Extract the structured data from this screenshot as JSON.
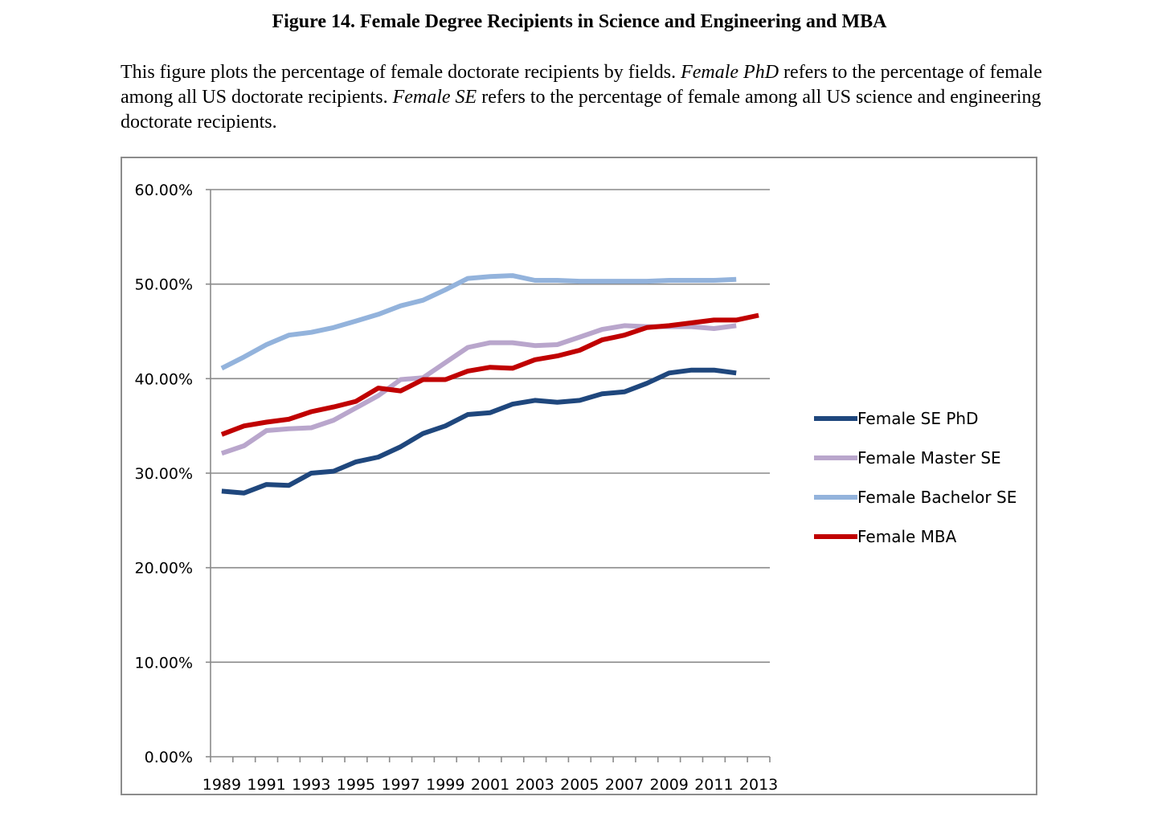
{
  "figure": {
    "title": "Figure 14. Female Degree Recipients in Science and Engineering and MBA",
    "caption": {
      "p1": "This figure plots the percentage of female doctorate recipients by fields. ",
      "em1": "Female PhD",
      "p2": " refers to the percentage of female among all US doctorate recipients. ",
      "em2": "Female SE",
      "p3": " refers to the percentage of female among all US science and engineering doctorate recipients."
    }
  },
  "chart_data": {
    "type": "line",
    "title": "",
    "xlabel": "",
    "ylabel": "",
    "x": [
      1989,
      1990,
      1991,
      1992,
      1993,
      1994,
      1995,
      1996,
      1997,
      1998,
      1999,
      2000,
      2001,
      2002,
      2003,
      2004,
      2005,
      2006,
      2007,
      2008,
      2009,
      2010,
      2011,
      2012,
      2013
    ],
    "x_tick_labels": [
      "1989",
      "1991",
      "1993",
      "1995",
      "1997",
      "1999",
      "2001",
      "2003",
      "2005",
      "2007",
      "2009",
      "2011",
      "2013"
    ],
    "y_tick_labels": [
      "0.00%",
      "10.00%",
      "20.00%",
      "30.00%",
      "40.00%",
      "50.00%",
      "60.00%"
    ],
    "ylim": [
      0,
      60
    ],
    "grid": "horizontal",
    "legend_position": "right",
    "series": [
      {
        "name": "Female SE PhD",
        "color": "#1f477d",
        "values": [
          28.1,
          27.9,
          28.8,
          28.7,
          30.0,
          30.2,
          31.2,
          31.7,
          32.8,
          34.2,
          35.0,
          36.2,
          36.4,
          37.3,
          37.7,
          37.5,
          37.7,
          38.4,
          38.6,
          39.5,
          40.6,
          40.9,
          40.9,
          40.6,
          null
        ]
      },
      {
        "name": "Female Master SE",
        "color": "#b9a6cc",
        "values": [
          32.1,
          32.9,
          34.5,
          34.7,
          34.8,
          35.6,
          36.9,
          38.2,
          39.9,
          40.1,
          41.7,
          43.3,
          43.8,
          43.8,
          43.5,
          43.6,
          44.4,
          45.2,
          45.6,
          45.5,
          45.5,
          45.5,
          45.3,
          45.6,
          null
        ]
      },
      {
        "name": "Female Bachelor SE",
        "color": "#93b3dc",
        "values": [
          41.1,
          42.3,
          43.6,
          44.6,
          44.9,
          45.4,
          46.1,
          46.8,
          47.7,
          48.3,
          49.4,
          50.6,
          50.8,
          50.9,
          50.4,
          50.4,
          50.3,
          50.3,
          50.3,
          50.3,
          50.4,
          50.4,
          50.4,
          50.5,
          null
        ]
      },
      {
        "name": "Female MBA",
        "color": "#c00000",
        "values": [
          34.1,
          35.0,
          35.4,
          35.7,
          36.5,
          37.0,
          37.6,
          39.0,
          38.7,
          39.9,
          39.9,
          40.8,
          41.2,
          41.1,
          42.0,
          42.4,
          43.0,
          44.1,
          44.6,
          45.4,
          45.6,
          45.9,
          46.2,
          46.2,
          46.7
        ]
      }
    ]
  }
}
